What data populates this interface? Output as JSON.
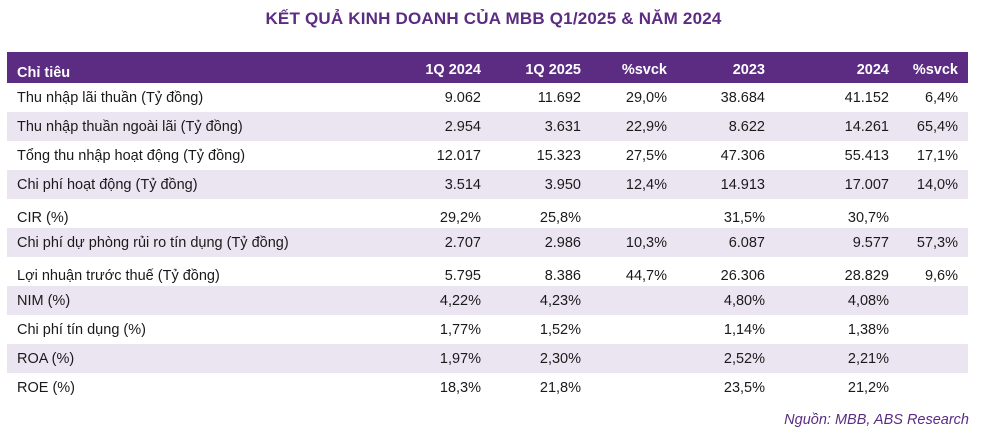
{
  "title": "KẾT QUẢ KINH DOANH CỦA MBB Q1/2025 & NĂM 2024",
  "table": {
    "headers": [
      "Chỉ tiêu",
      "1Q 2024",
      "1Q 2025",
      "%svck",
      "2023",
      "2024",
      "%svck"
    ],
    "rows": [
      [
        "Thu nhập lãi thuần (Tỷ đồng)",
        "9.062",
        "11.692",
        "29,0%",
        "38.684",
        "41.152",
        "6,4%"
      ],
      [
        "Thu nhập thuần ngoài lãi (Tỷ đồng)",
        "2.954",
        "3.631",
        "22,9%",
        "8.622",
        "14.261",
        "65,4%"
      ],
      [
        "Tổng thu nhập hoạt động (Tỷ đồng)",
        "12.017",
        "15.323",
        "27,5%",
        "47.306",
        "55.413",
        "17,1%"
      ],
      [
        "Chi phí hoạt động (Tỷ đồng)",
        "3.514",
        "3.950",
        "12,4%",
        "14.913",
        "17.007",
        "14,0%"
      ],
      [
        "CIR (%)",
        "29,2%",
        "25,8%",
        "",
        "31,5%",
        "30,7%",
        ""
      ],
      [
        "Chi phí dự phòng rủi ro tín dụng (Tỷ đồng)",
        "2.707",
        "2.986",
        "10,3%",
        "6.087",
        "9.577",
        "57,3%"
      ],
      [
        "Lợi nhuận trước thuế (Tỷ đồng)",
        "5.795",
        "8.386",
        "44,7%",
        "26.306",
        "28.829",
        "9,6%"
      ],
      [
        "NIM (%)",
        "4,22%",
        "4,23%",
        "",
        "4,80%",
        "4,08%",
        ""
      ],
      [
        "Chi phí tín dụng (%)",
        "1,77%",
        "1,52%",
        "",
        "1,14%",
        "1,38%",
        ""
      ],
      [
        "ROA (%)",
        "1,97%",
        "2,30%",
        "",
        "2,52%",
        "2,21%",
        ""
      ],
      [
        "ROE (%)",
        "18,3%",
        "21,8%",
        "",
        "23,5%",
        "21,2%",
        ""
      ]
    ]
  },
  "source": "Nguồn: MBB, ABS Research"
}
